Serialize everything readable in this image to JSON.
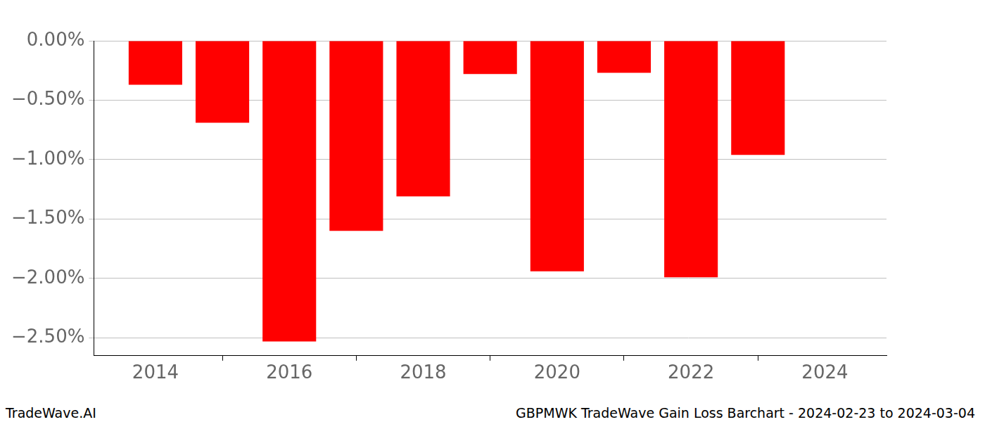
{
  "chart_data": {
    "type": "bar",
    "title": "GBPMWK TradeWave Gain Loss Barchart - 2024-02-23 to 2024-03-04",
    "annotations": [
      "TradeWave.AI"
    ],
    "x": [
      2014,
      2015,
      2016,
      2017,
      2018,
      2019,
      2020,
      2021,
      2022,
      2023
    ],
    "values": [
      -0.37,
      -0.69,
      -2.53,
      -1.6,
      -1.31,
      -0.28,
      -1.94,
      -0.27,
      -1.99,
      -0.96
    ],
    "color": "#ff0000",
    "xlim": [
      2013.08,
      2024.92
    ],
    "xticks": [
      2014,
      2016,
      2018,
      2020,
      2022,
      2024
    ],
    "ylim": [
      -2.65,
      0
    ],
    "yticks": [
      {
        "value": 0,
        "label": "0.00%"
      },
      {
        "value": -0.5,
        "label": "−0.50%"
      },
      {
        "value": -1.0,
        "label": "−1.00%"
      },
      {
        "value": -1.5,
        "label": "−1.50%"
      },
      {
        "value": -2.0,
        "label": "−2.00%"
      },
      {
        "value": -2.5,
        "label": "−2.50%"
      }
    ],
    "grid": true
  }
}
